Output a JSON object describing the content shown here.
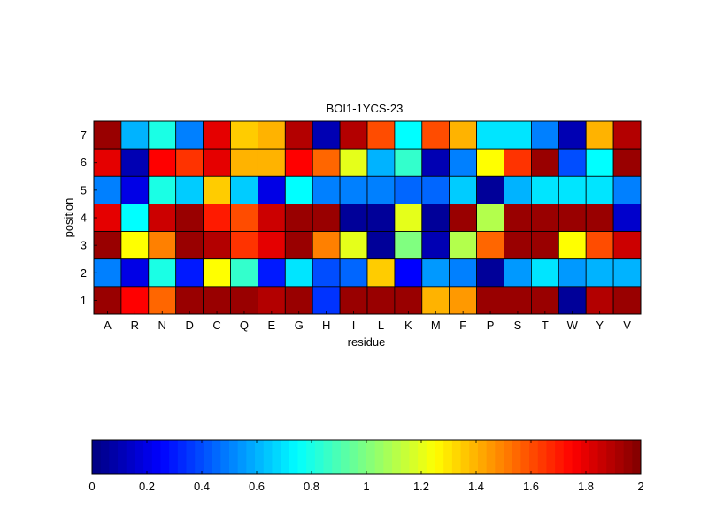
{
  "chart_data": [
    {
      "type": "heatmap",
      "title": "BOI1-1YCS-23",
      "xlabel": "residue",
      "ylabel": "position",
      "x_categories": [
        "A",
        "R",
        "N",
        "D",
        "C",
        "Q",
        "E",
        "G",
        "H",
        "I",
        "L",
        "K",
        "M",
        "F",
        "P",
        "S",
        "T",
        "W",
        "Y",
        "V"
      ],
      "y_categories": [
        "7",
        "6",
        "5",
        "4",
        "3",
        "2",
        "1"
      ],
      "colormap": "jet",
      "clim": [
        0,
        2
      ],
      "values": [
        [
          1.95,
          0.6,
          0.8,
          0.5,
          1.8,
          1.35,
          1.4,
          1.9,
          0.1,
          1.9,
          1.6,
          0.75,
          1.6,
          1.4,
          0.7,
          0.7,
          0.5,
          0.1,
          1.4,
          1.9
        ],
        [
          1.8,
          0.1,
          1.75,
          1.65,
          1.8,
          1.4,
          1.4,
          1.75,
          1.55,
          1.2,
          0.6,
          0.85,
          0.1,
          0.5,
          1.25,
          1.65,
          1.95,
          0.4,
          0.75,
          1.95
        ],
        [
          0.5,
          0.2,
          0.8,
          0.65,
          1.35,
          0.65,
          0.2,
          0.75,
          0.5,
          0.5,
          0.5,
          0.45,
          0.45,
          0.65,
          0.05,
          0.6,
          0.7,
          0.7,
          0.7,
          0.5
        ],
        [
          1.8,
          0.75,
          1.85,
          1.95,
          1.7,
          1.6,
          1.85,
          1.95,
          1.95,
          0.05,
          0.05,
          1.2,
          0.05,
          1.95,
          1.1,
          1.95,
          1.95,
          1.95,
          1.95,
          0.15
        ],
        [
          1.95,
          1.25,
          1.5,
          1.95,
          1.9,
          1.65,
          1.8,
          1.95,
          1.5,
          1.2,
          0.05,
          1.0,
          0.1,
          1.1,
          1.55,
          1.95,
          1.95,
          1.25,
          1.6,
          1.85
        ],
        [
          0.5,
          0.2,
          0.8,
          0.3,
          1.25,
          0.85,
          0.3,
          0.7,
          0.4,
          0.45,
          1.35,
          0.25,
          0.55,
          0.5,
          0.05,
          0.55,
          0.7,
          0.55,
          0.6,
          0.6
        ],
        [
          1.95,
          1.75,
          1.55,
          1.95,
          1.95,
          1.95,
          1.9,
          1.95,
          0.35,
          1.95,
          1.95,
          1.95,
          1.4,
          1.45,
          1.95,
          1.95,
          1.95,
          0.05,
          1.9,
          1.95
        ]
      ]
    },
    {
      "type": "colorbar",
      "range": [
        0,
        2
      ],
      "tick_labels": [
        "0",
        "0.2",
        "0.4",
        "0.6",
        "0.8",
        "1",
        "1.2",
        "1.4",
        "1.6",
        "1.8",
        "2"
      ]
    }
  ]
}
